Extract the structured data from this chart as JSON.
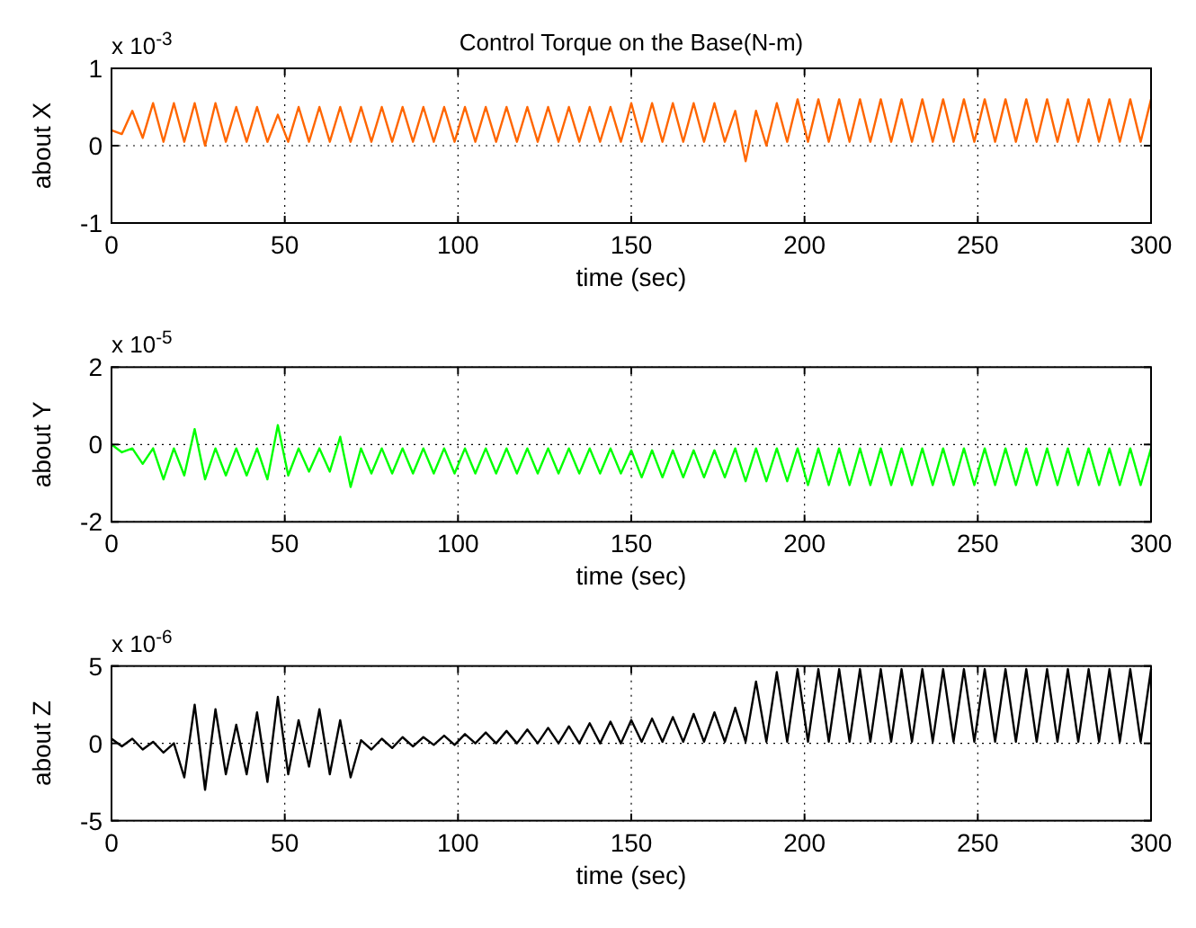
{
  "chart_data": [
    {
      "type": "line",
      "title": "Control Torque on the Base(N-m)",
      "xlabel": "time (sec)",
      "ylabel": "about X",
      "annotations": [
        "x 10$^{-3}$"
      ],
      "grid": true,
      "xlim": [
        0,
        300
      ],
      "xticks": [
        0,
        50,
        100,
        150,
        200,
        250,
        300
      ],
      "ylim": [
        -1,
        1
      ],
      "yticks": [
        -1,
        0,
        1
      ],
      "x": [
        0,
        3,
        6,
        9,
        12,
        15,
        18,
        21,
        24,
        27,
        30,
        33,
        36,
        39,
        42,
        45,
        48,
        51,
        54,
        57,
        60,
        63,
        66,
        69,
        72,
        75,
        78,
        81,
        84,
        87,
        90,
        93,
        96,
        99,
        102,
        105,
        108,
        111,
        114,
        117,
        120,
        123,
        126,
        129,
        132,
        135,
        138,
        141,
        144,
        147,
        150,
        153,
        156,
        159,
        162,
        165,
        168,
        171,
        174,
        177,
        180,
        183,
        186,
        189,
        192,
        195,
        198,
        201,
        204,
        207,
        210,
        213,
        216,
        219,
        222,
        225,
        228,
        231,
        234,
        237,
        240,
        243,
        246,
        249,
        252,
        255,
        258,
        261,
        264,
        267,
        270,
        273,
        276,
        279,
        282,
        285,
        288,
        291,
        294,
        297,
        300
      ],
      "series": [
        {
          "color": "#ff6600",
          "values": [
            0.2,
            0.15,
            0.45,
            0.1,
            0.55,
            0.05,
            0.55,
            0.05,
            0.55,
            0.0,
            0.55,
            0.05,
            0.5,
            0.05,
            0.5,
            0.05,
            0.4,
            0.05,
            0.5,
            0.05,
            0.5,
            0.05,
            0.5,
            0.05,
            0.5,
            0.05,
            0.5,
            0.05,
            0.5,
            0.05,
            0.5,
            0.05,
            0.5,
            0.05,
            0.5,
            0.05,
            0.5,
            0.05,
            0.5,
            0.05,
            0.5,
            0.05,
            0.5,
            0.05,
            0.5,
            0.05,
            0.5,
            0.05,
            0.5,
            0.05,
            0.55,
            0.05,
            0.55,
            0.05,
            0.55,
            0.05,
            0.55,
            0.05,
            0.55,
            0.05,
            0.45,
            -0.2,
            0.45,
            0.0,
            0.55,
            0.05,
            0.6,
            0.05,
            0.6,
            0.05,
            0.6,
            0.05,
            0.6,
            0.05,
            0.6,
            0.05,
            0.6,
            0.05,
            0.6,
            0.05,
            0.6,
            0.05,
            0.6,
            0.05,
            0.6,
            0.05,
            0.6,
            0.05,
            0.6,
            0.05,
            0.6,
            0.05,
            0.6,
            0.05,
            0.6,
            0.05,
            0.6,
            0.05,
            0.6,
            0.05,
            0.6
          ]
        }
      ]
    },
    {
      "type": "line",
      "xlabel": "time (sec)",
      "ylabel": "about Y",
      "annotations": [
        "x 10$^{-5}$"
      ],
      "grid": true,
      "xlim": [
        0,
        300
      ],
      "xticks": [
        0,
        50,
        100,
        150,
        200,
        250,
        300
      ],
      "ylim": [
        -2,
        2
      ],
      "yticks": [
        -2,
        0,
        2
      ],
      "x": [
        0,
        3,
        6,
        9,
        12,
        15,
        18,
        21,
        24,
        27,
        30,
        33,
        36,
        39,
        42,
        45,
        48,
        51,
        54,
        57,
        60,
        63,
        66,
        69,
        72,
        75,
        78,
        81,
        84,
        87,
        90,
        93,
        96,
        99,
        102,
        105,
        108,
        111,
        114,
        117,
        120,
        123,
        126,
        129,
        132,
        135,
        138,
        141,
        144,
        147,
        150,
        153,
        156,
        159,
        162,
        165,
        168,
        171,
        174,
        177,
        180,
        183,
        186,
        189,
        192,
        195,
        198,
        201,
        204,
        207,
        210,
        213,
        216,
        219,
        222,
        225,
        228,
        231,
        234,
        237,
        240,
        243,
        246,
        249,
        252,
        255,
        258,
        261,
        264,
        267,
        270,
        273,
        276,
        279,
        282,
        285,
        288,
        291,
        294,
        297,
        300
      ],
      "series": [
        {
          "color": "#00ff00",
          "values": [
            0,
            -0.2,
            -0.1,
            -0.5,
            -0.1,
            -0.9,
            -0.1,
            -0.8,
            0.4,
            -0.9,
            -0.1,
            -0.8,
            -0.1,
            -0.8,
            -0.1,
            -0.9,
            0.5,
            -0.8,
            -0.1,
            -0.7,
            -0.1,
            -0.7,
            0.2,
            -1.1,
            -0.1,
            -0.75,
            -0.1,
            -0.75,
            -0.1,
            -0.75,
            -0.1,
            -0.75,
            -0.1,
            -0.75,
            -0.1,
            -0.75,
            -0.1,
            -0.75,
            -0.1,
            -0.75,
            -0.1,
            -0.75,
            -0.1,
            -0.75,
            -0.1,
            -0.75,
            -0.1,
            -0.75,
            -0.1,
            -0.75,
            -0.15,
            -0.85,
            -0.15,
            -0.85,
            -0.15,
            -0.85,
            -0.15,
            -0.85,
            -0.15,
            -0.85,
            -0.1,
            -0.95,
            -0.1,
            -0.95,
            -0.1,
            -0.95,
            -0.1,
            -1.05,
            -0.1,
            -1.05,
            -0.1,
            -1.05,
            -0.1,
            -1.05,
            -0.1,
            -1.05,
            -0.1,
            -1.05,
            -0.1,
            -1.05,
            -0.1,
            -1.05,
            -0.1,
            -1.05,
            -0.1,
            -1.05,
            -0.1,
            -1.05,
            -0.1,
            -1.05,
            -0.1,
            -1.05,
            -0.1,
            -1.05,
            -0.1,
            -1.05,
            -0.1,
            -1.05,
            -0.1,
            -1.05,
            -0.1
          ]
        }
      ]
    },
    {
      "type": "line",
      "xlabel": "time (sec)",
      "ylabel": "about Z",
      "annotations": [
        "x 10$^{-6}$"
      ],
      "grid": true,
      "xlim": [
        0,
        300
      ],
      "xticks": [
        0,
        50,
        100,
        150,
        200,
        250,
        300
      ],
      "ylim": [
        -5,
        5
      ],
      "yticks": [
        -5,
        0,
        5
      ],
      "x": [
        0,
        3,
        6,
        9,
        12,
        15,
        18,
        21,
        24,
        27,
        30,
        33,
        36,
        39,
        42,
        45,
        48,
        51,
        54,
        57,
        60,
        63,
        66,
        69,
        72,
        75,
        78,
        81,
        84,
        87,
        90,
        93,
        96,
        99,
        102,
        105,
        108,
        111,
        114,
        117,
        120,
        123,
        126,
        129,
        132,
        135,
        138,
        141,
        144,
        147,
        150,
        153,
        156,
        159,
        162,
        165,
        168,
        171,
        174,
        177,
        180,
        183,
        186,
        189,
        192,
        195,
        198,
        201,
        204,
        207,
        210,
        213,
        216,
        219,
        222,
        225,
        228,
        231,
        234,
        237,
        240,
        243,
        246,
        249,
        252,
        255,
        258,
        261,
        264,
        267,
        270,
        273,
        276,
        279,
        282,
        285,
        288,
        291,
        294,
        297,
        300
      ],
      "series": [
        {
          "color": "#000000",
          "values": [
            0.3,
            -0.2,
            0.3,
            -0.4,
            0.1,
            -0.6,
            0.0,
            -2.2,
            2.5,
            -3.0,
            2.2,
            -2.0,
            1.2,
            -2.0,
            2.0,
            -2.5,
            3.0,
            -2.0,
            1.5,
            -1.5,
            2.2,
            -2.0,
            1.5,
            -2.2,
            0.2,
            -0.4,
            0.3,
            -0.3,
            0.4,
            -0.2,
            0.4,
            -0.1,
            0.5,
            -0.1,
            0.6,
            0,
            0.7,
            0,
            0.8,
            0,
            0.9,
            0,
            1.0,
            0,
            1.1,
            0,
            1.3,
            0,
            1.4,
            0,
            1.5,
            0.1,
            1.6,
            0.1,
            1.7,
            0.1,
            1.9,
            0.1,
            2.0,
            0.1,
            2.3,
            0.1,
            4.0,
            0.1,
            4.6,
            0.1,
            4.8,
            0.1,
            4.8,
            0.1,
            4.8,
            0.1,
            4.8,
            0.1,
            4.8,
            0.1,
            4.8,
            0.1,
            4.8,
            0.1,
            4.8,
            0.1,
            4.8,
            0.1,
            4.8,
            0.1,
            4.8,
            0.1,
            4.8,
            0.1,
            4.8,
            0.1,
            4.8,
            0.1,
            4.8,
            0.1,
            4.8,
            0.1,
            4.8,
            0.1,
            4.8
          ]
        }
      ]
    }
  ]
}
